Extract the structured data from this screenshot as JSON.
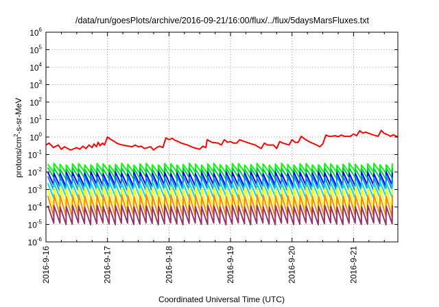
{
  "chart_data": {
    "type": "line",
    "title": "/data/run/goesPlots/archive/2016-09-21/16:00/flux/../flux/5daysMarsFluxes.txt",
    "xlabel": "Coordinated Universal Time (UTC)",
    "ylabel": "protons/cm2-s-sr-MeV",
    "ylabel_parts": {
      "base": "protons/cm",
      "sup": "2",
      "rest": "-s-sr-MeV"
    },
    "yscale": "log",
    "ylim": [
      1e-06,
      1000000.0
    ],
    "xlim_days": [
      0,
      5.72
    ],
    "grid": true,
    "x_ticks": [
      {
        "label": "2016-9-16",
        "day": 0
      },
      {
        "label": "2016-9-17",
        "day": 1
      },
      {
        "label": "2016-9-18",
        "day": 2
      },
      {
        "label": "2016-9-19",
        "day": 3
      },
      {
        "label": "2016-9-20",
        "day": 4
      },
      {
        "label": "2016-9-21",
        "day": 5
      }
    ],
    "y_ticks": [
      {
        "base": "10",
        "exp": "6",
        "value": 1000000.0
      },
      {
        "base": "10",
        "exp": "5",
        "value": 100000.0
      },
      {
        "base": "10",
        "exp": "4",
        "value": 10000.0
      },
      {
        "base": "10",
        "exp": "3",
        "value": 1000.0
      },
      {
        "base": "10",
        "exp": "2",
        "value": 100.0
      },
      {
        "base": "10",
        "exp": "1",
        "value": 10.0
      },
      {
        "base": "10",
        "exp": "0",
        "value": 1.0
      },
      {
        "base": "10",
        "exp": "-1",
        "value": 0.1
      },
      {
        "base": "10",
        "exp": "-2",
        "value": 0.01
      },
      {
        "base": "10",
        "exp": "-3",
        "value": 0.001
      },
      {
        "base": "10",
        "exp": "-4",
        "value": 0.0001
      },
      {
        "base": "10",
        "exp": "-5",
        "value": 1e-05
      },
      {
        "base": "10",
        "exp": "-6",
        "value": 1e-06
      }
    ],
    "series": [
      {
        "color": "#ff0000",
        "x": [
          0,
          0.05,
          0.1,
          0.12,
          0.2,
          0.25,
          0.3,
          0.4,
          0.5,
          0.55,
          0.6,
          0.65,
          0.7,
          0.75,
          0.78,
          0.82,
          0.85,
          0.88,
          0.92,
          0.95,
          1.0,
          1.05,
          1.1,
          1.15,
          1.2,
          1.3,
          1.4,
          1.45,
          1.5,
          1.55,
          1.6,
          1.7,
          1.75,
          1.8,
          1.85,
          1.9,
          1.95,
          2.0,
          2.05,
          2.1,
          2.15,
          2.2,
          2.3,
          2.4,
          2.5,
          2.55,
          2.6,
          2.62,
          2.7,
          2.8,
          2.85,
          2.9,
          2.95,
          3.0,
          3.05,
          3.1,
          3.15,
          3.2,
          3.3,
          3.4,
          3.5,
          3.55,
          3.6,
          3.7,
          3.75,
          3.8,
          3.85,
          3.9,
          3.95,
          4.0,
          4.05,
          4.1,
          4.15,
          4.2,
          4.3,
          4.4,
          4.45,
          4.5,
          4.55,
          4.6,
          4.65,
          4.7,
          4.75,
          4.8,
          4.85,
          4.9,
          4.95,
          5.0,
          5.05,
          5.1,
          5.15,
          5.2,
          5.3,
          5.4,
          5.45,
          5.5,
          5.55,
          5.6,
          5.65,
          5.72
        ],
        "y": [
          0.35,
          0.45,
          0.3,
          0.25,
          0.35,
          0.2,
          0.28,
          0.18,
          0.25,
          0.2,
          0.3,
          0.22,
          0.35,
          0.25,
          0.4,
          0.28,
          0.5,
          0.32,
          0.45,
          0.35,
          1.0,
          0.75,
          0.6,
          0.45,
          0.38,
          0.32,
          0.28,
          0.35,
          0.28,
          0.3,
          0.22,
          0.28,
          0.18,
          0.25,
          0.3,
          0.25,
          0.9,
          0.7,
          0.85,
          0.65,
          0.55,
          0.45,
          0.35,
          0.25,
          0.2,
          0.3,
          0.25,
          0.7,
          0.5,
          0.45,
          0.35,
          0.7,
          0.5,
          0.55,
          0.45,
          0.45,
          0.7,
          0.6,
          0.45,
          0.35,
          0.22,
          0.45,
          0.35,
          0.35,
          0.22,
          0.55,
          0.45,
          0.4,
          0.35,
          0.7,
          0.5,
          0.5,
          1.1,
          0.8,
          0.5,
          0.35,
          0.28,
          0.4,
          1.3,
          1.1,
          1.1,
          1.2,
          1.05,
          1.3,
          1.1,
          1.1,
          1.1,
          1.5,
          1.2,
          2.3,
          1.7,
          1.9,
          1.4,
          1.1,
          2.4,
          1.6,
          1.4,
          1.1,
          1.35,
          1.0
        ]
      },
      {
        "color": "#00ff00",
        "x": [],
        "y": []
      },
      {
        "color": "#00cc44",
        "x": [],
        "y": []
      },
      {
        "color": "#0000ff",
        "x": [],
        "y": []
      },
      {
        "color": "#0088ff",
        "x": [],
        "y": []
      },
      {
        "color": "#00dddd",
        "x": [],
        "y": []
      },
      {
        "color": "#ffff00",
        "x": [],
        "y": []
      },
      {
        "color": "#ff8800",
        "x": [],
        "y": []
      },
      {
        "color": "#993366",
        "x": [],
        "y": []
      }
    ],
    "sawtooth_bands": [
      {
        "color": "#00ff00",
        "high": 0.028,
        "low": 0.0095
      },
      {
        "color": "#00cc44",
        "high": 0.016,
        "low": 0.0045
      },
      {
        "color": "#0000ff",
        "high": 0.009,
        "low": 0.0016
      },
      {
        "color": "#0088ff",
        "high": 0.0055,
        "low": 0.0009
      },
      {
        "color": "#00dddd",
        "high": 0.0025,
        "low": 0.00035
      },
      {
        "color": "#ffff00",
        "high": 0.0012,
        "low": 9e-05
      },
      {
        "color": "#ff8800",
        "high": 0.00045,
        "low": 3e-05
      },
      {
        "color": "#993366",
        "high": 0.00011,
        "low": 1.1e-05
      }
    ],
    "sawtooth_period_days": 0.1
  }
}
